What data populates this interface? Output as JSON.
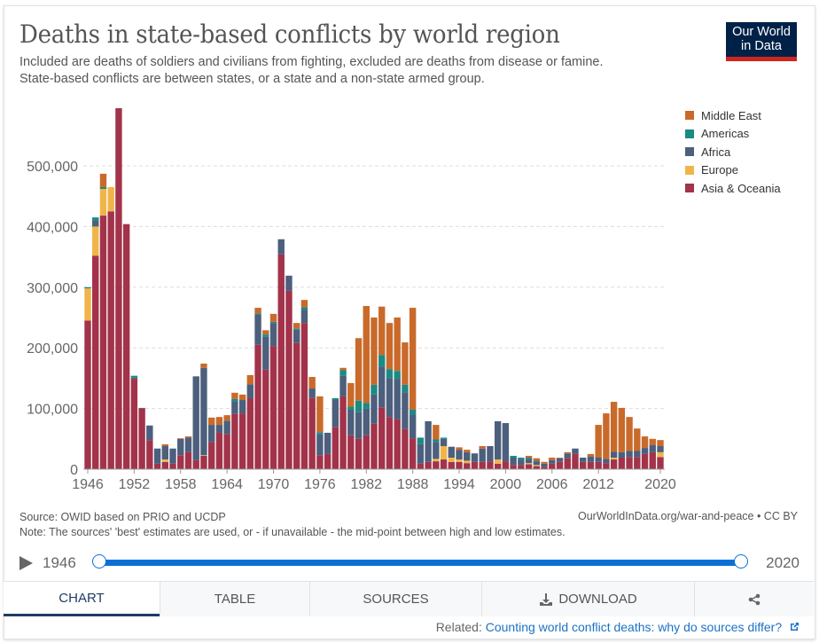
{
  "header": {
    "title": "Deaths in state-based conflicts by world region",
    "subtitle_line1": "Included are deaths of soldiers and civilians from fighting, excluded are deaths from disease or famine.",
    "subtitle_line2": "State-based conflicts are between states, or a state and a non-state armed group.",
    "logo_line1": "Our World",
    "logo_line2": "in Data"
  },
  "footer": {
    "source": "Source: OWID based on PRIO and UCDP",
    "note": "Note: The sources' 'best' estimates are used, or - if unavailable - the mid-point between high and low estimates.",
    "credit": "OurWorldInData.org/war-and-peace • CC BY"
  },
  "timeline": {
    "start": "1946",
    "end": "2020",
    "play_icon": "play-icon"
  },
  "tabs": [
    {
      "label": "CHART",
      "active": true
    },
    {
      "label": "TABLE"
    },
    {
      "label": "SOURCES"
    },
    {
      "label": "DOWNLOAD",
      "icon": "download-icon"
    },
    {
      "label": "",
      "icon": "share-icon"
    }
  ],
  "related": {
    "prefix": "Related:",
    "link": "Counting world conflict deaths: why do sources differ?",
    "icon": "external-link-icon"
  },
  "chart_data": {
    "type": "bar",
    "stacked": true,
    "title": "Deaths in state-based conflicts by world region",
    "xlabel": "",
    "ylabel": "",
    "ylim": [
      0,
      600000
    ],
    "yticks": [
      0,
      100000,
      200000,
      300000,
      400000,
      500000
    ],
    "ytick_labels": [
      "0",
      "100,000",
      "200,000",
      "300,000",
      "400,000",
      "500,000"
    ],
    "xtick_labels": [
      "1946",
      "1952",
      "1958",
      "1964",
      "1970",
      "1976",
      "1982",
      "1988",
      "1994",
      "2000",
      "2006",
      "2012",
      "2020"
    ],
    "grid": true,
    "legend_position": "right",
    "x": [
      1946,
      1947,
      1948,
      1949,
      1950,
      1951,
      1952,
      1953,
      1954,
      1955,
      1956,
      1957,
      1958,
      1959,
      1960,
      1961,
      1962,
      1963,
      1964,
      1965,
      1966,
      1967,
      1968,
      1969,
      1970,
      1971,
      1972,
      1973,
      1974,
      1975,
      1976,
      1977,
      1978,
      1979,
      1980,
      1981,
      1982,
      1983,
      1984,
      1985,
      1986,
      1987,
      1988,
      1989,
      1990,
      1991,
      1992,
      1993,
      1994,
      1995,
      1996,
      1997,
      1998,
      1999,
      2000,
      2001,
      2002,
      2003,
      2004,
      2005,
      2006,
      2007,
      2008,
      2009,
      2010,
      2011,
      2012,
      2013,
      2014,
      2015,
      2016,
      2017,
      2018,
      2019,
      2020
    ],
    "series": [
      {
        "name": "Asia & Oceania",
        "color": "#a2334a",
        "values": [
          245000,
          352000,
          418000,
          425000,
          595000,
          404000,
          149000,
          100000,
          48000,
          9000,
          12000,
          9000,
          23000,
          28000,
          15000,
          22000,
          44000,
          60000,
          58000,
          91000,
          92000,
          117000,
          205000,
          164000,
          203000,
          354000,
          294000,
          208000,
          241000,
          118000,
          23000,
          25000,
          69000,
          120000,
          56000,
          50000,
          56000,
          75000,
          102000,
          86000,
          82000,
          66000,
          51000,
          9000,
          12000,
          13000,
          16000,
          12000,
          12000,
          10000,
          12000,
          12000,
          13000,
          9000,
          13000,
          7000,
          7000,
          8000,
          5000,
          4000,
          9000,
          12000,
          18000,
          25000,
          12000,
          12000,
          12000,
          10000,
          16000,
          19000,
          20000,
          20000,
          25000,
          28000,
          20000
        ]
      },
      {
        "name": "Europe",
        "color": "#f0b54a",
        "values": [
          53000,
          48000,
          44000,
          40000,
          0,
          0,
          0,
          0,
          0,
          0,
          4000,
          0,
          0,
          0,
          0,
          1000,
          0,
          0,
          0,
          0,
          0,
          0,
          0,
          0,
          0,
          0,
          0,
          0,
          0,
          0,
          0,
          0,
          0,
          0,
          0,
          0,
          0,
          0,
          0,
          0,
          0,
          0,
          0,
          0,
          0,
          4000,
          22000,
          7000,
          4000,
          4000,
          0,
          0,
          0,
          7000,
          0,
          0,
          0,
          2000,
          2000,
          0,
          0,
          0,
          0,
          0,
          0,
          0,
          0,
          0,
          3000,
          0,
          0,
          0,
          0,
          0,
          8000
        ]
      },
      {
        "name": "Africa",
        "color": "#4c5f7d",
        "values": [
          0,
          10000,
          0,
          0,
          0,
          0,
          2000,
          1000,
          24000,
          25000,
          22000,
          25000,
          27000,
          24000,
          138000,
          144000,
          29000,
          13000,
          22000,
          21000,
          22000,
          23000,
          50000,
          54000,
          38000,
          25000,
          25000,
          22000,
          22000,
          15000,
          35000,
          35000,
          45000,
          34000,
          42000,
          44000,
          44000,
          48000,
          67000,
          64000,
          67000,
          61000,
          39000,
          33000,
          67000,
          28000,
          12000,
          18000,
          16000,
          14000,
          14000,
          22000,
          25000,
          63000,
          63000,
          12000,
          9000,
          7000,
          6000,
          5000,
          6000,
          6000,
          8000,
          9000,
          7000,
          9000,
          7000,
          7000,
          10000,
          9000,
          10000,
          10000,
          10000,
          12000,
          10000
        ]
      },
      {
        "name": "Americas",
        "color": "#1a8b83",
        "values": [
          2000,
          5000,
          3000,
          0,
          0,
          0,
          3000,
          0,
          0,
          0,
          0,
          0,
          0,
          0,
          0,
          0,
          0,
          0,
          0,
          4000,
          0,
          0,
          2000,
          4000,
          2000,
          0,
          0,
          2000,
          4000,
          0,
          3000,
          0,
          3000,
          9000,
          5000,
          19000,
          9000,
          16000,
          19000,
          15000,
          13000,
          12000,
          8000,
          10000,
          0,
          4000,
          2000,
          0,
          0,
          0,
          0,
          0,
          0,
          0,
          0,
          3000,
          3000,
          2000,
          1000,
          0,
          0,
          0,
          0,
          0,
          0,
          0,
          0,
          0,
          0,
          0,
          0,
          0,
          0,
          0,
          0
        ]
      },
      {
        "name": "Middle East",
        "color": "#c96a2b",
        "values": [
          0,
          0,
          22000,
          0,
          0,
          0,
          0,
          0,
          0,
          0,
          3000,
          0,
          1000,
          2000,
          0,
          7000,
          12000,
          13000,
          9000,
          10000,
          9000,
          15000,
          9000,
          7000,
          13000,
          0,
          0,
          9000,
          12000,
          19000,
          59000,
          0,
          0,
          4000,
          39000,
          103000,
          160000,
          111000,
          80000,
          76000,
          88000,
          70000,
          168000,
          0,
          0,
          24000,
          0,
          0,
          4000,
          4000,
          0,
          4000,
          0,
          0,
          0,
          0,
          0,
          3000,
          4000,
          3000,
          4000,
          1000,
          2000,
          0,
          0,
          4000,
          54000,
          75000,
          82000,
          73000,
          56000,
          37000,
          19000,
          10000,
          10000
        ]
      }
    ]
  },
  "legend": [
    {
      "name": "Middle East",
      "color": "#c96a2b"
    },
    {
      "name": "Americas",
      "color": "#1a8b83"
    },
    {
      "name": "Africa",
      "color": "#4c5f7d"
    },
    {
      "name": "Europe",
      "color": "#f0b54a"
    },
    {
      "name": "Asia & Oceania",
      "color": "#a2334a"
    }
  ]
}
